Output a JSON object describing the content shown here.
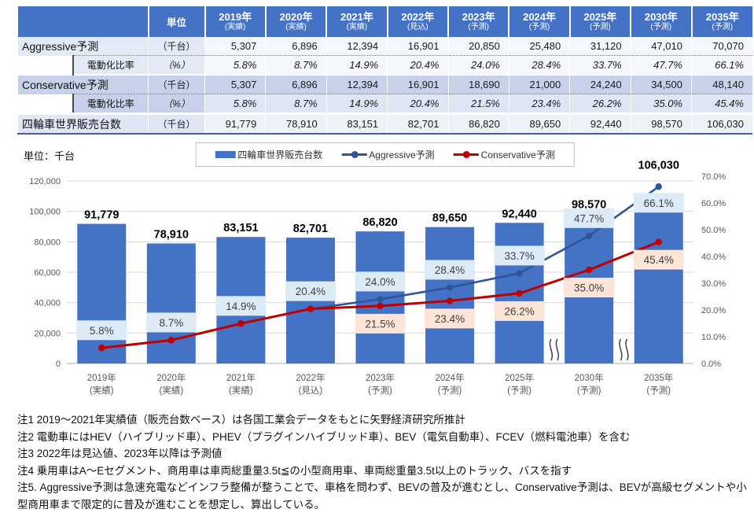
{
  "table": {
    "unit_header": "単位",
    "columns": [
      {
        "year": "2019年",
        "status": "(実績)"
      },
      {
        "year": "2020年",
        "status": "(実績)"
      },
      {
        "year": "2021年",
        "status": "(実績)"
      },
      {
        "year": "2022年",
        "status": "(見込)"
      },
      {
        "year": "2023年",
        "status": "(予測)"
      },
      {
        "year": "2024年",
        "status": "(予測)"
      },
      {
        "year": "2025年",
        "status": "(予測)"
      },
      {
        "year": "2030年",
        "status": "(予測)"
      },
      {
        "year": "2035年",
        "status": "(予測)"
      }
    ],
    "rows": [
      {
        "id": "aggressive",
        "label": "Aggressive予測",
        "unit": "（千台）",
        "values": [
          "5,307",
          "6,896",
          "12,394",
          "16,901",
          "20,850",
          "25,480",
          "31,120",
          "47,010",
          "70,070"
        ]
      },
      {
        "id": "aggressive-ratio",
        "label": "電動化比率",
        "unit": "（%）",
        "values": [
          "5.8%",
          "8.7%",
          "14.9%",
          "20.4%",
          "24.0%",
          "28.4%",
          "33.7%",
          "47.7%",
          "66.1%"
        ]
      },
      {
        "id": "conservative",
        "label": "Conservative予測",
        "unit": "（千台）",
        "values": [
          "5,307",
          "6,896",
          "12,394",
          "16,901",
          "18,690",
          "21,000",
          "24,240",
          "34,500",
          "48,140"
        ]
      },
      {
        "id": "conservative-ratio",
        "label": "電動化比率",
        "unit": "（%）",
        "values": [
          "5.8%",
          "8.7%",
          "14.9%",
          "20.4%",
          "21.5%",
          "23.4%",
          "26.2%",
          "35.0%",
          "45.4%"
        ]
      },
      {
        "id": "total",
        "label": "四輪車世界販売台数",
        "unit": "（千台）",
        "values": [
          "91,779",
          "78,910",
          "83,151",
          "82,701",
          "86,820",
          "89,650",
          "92,440",
          "98,570",
          "106,030"
        ]
      }
    ]
  },
  "chart_data": {
    "type": "bar+line",
    "unit_label": "単位：千台",
    "legend_position": "top",
    "grid": true,
    "categories": [
      {
        "year": "2019年",
        "status": "(実績)"
      },
      {
        "year": "2020年",
        "status": "(実績)"
      },
      {
        "year": "2021年",
        "status": "(実績)"
      },
      {
        "year": "2022年",
        "status": "(見込)"
      },
      {
        "year": "2023年",
        "status": "(予測)"
      },
      {
        "year": "2024年",
        "status": "(予測)"
      },
      {
        "year": "2025年",
        "status": "(予測)"
      },
      {
        "year": "2030年",
        "status": "(予測)"
      },
      {
        "year": "2035年",
        "status": "(予測)"
      }
    ],
    "series": [
      {
        "name": "四輪車世界販売台数",
        "type": "bar",
        "axis": "left",
        "color": "#4472C4",
        "values": [
          91779,
          78910,
          83151,
          82701,
          86820,
          89650,
          92440,
          98570,
          106030
        ],
        "labels": [
          "91,779",
          "78,910",
          "83,151",
          "82,701",
          "86,820",
          "89,650",
          "92,440",
          "98,570",
          "106,030"
        ]
      },
      {
        "name": "Aggressive予測",
        "type": "line",
        "axis": "right",
        "color": "#2F5597",
        "label_bg": "#DDEBF7",
        "values": [
          5.8,
          8.7,
          14.9,
          20.4,
          24.0,
          28.4,
          33.7,
          47.7,
          66.1
        ],
        "labels": [
          "5.8%",
          "8.7%",
          "14.9%",
          "20.4%",
          "24.0%",
          "28.4%",
          "33.7%",
          "47.7%",
          "66.1%"
        ]
      },
      {
        "name": "Conservative予測",
        "type": "line",
        "axis": "right",
        "color": "#C00000",
        "label_bg": "#FCE4D6",
        "values": [
          5.8,
          8.7,
          14.9,
          20.4,
          21.5,
          23.4,
          26.2,
          35.0,
          45.4
        ],
        "labels": [
          "5.8%",
          "8.7%",
          "14.9%",
          "20.4%",
          "21.5%",
          "23.4%",
          "26.2%",
          "35.0%",
          "45.4%"
        ]
      }
    ],
    "left_axis": {
      "min": 0,
      "max": 120000,
      "step": 20000,
      "ticks": [
        "0",
        "20,000",
        "40,000",
        "60,000",
        "80,000",
        "100,000",
        "120,000"
      ]
    },
    "right_axis": {
      "min": 0,
      "max": 70,
      "step": 10,
      "ticks": [
        "0.0%",
        "10.0%",
        "20.0%",
        "30.0%",
        "40.0%",
        "50.0%",
        "60.0%",
        "70.0%"
      ]
    },
    "axis_break_after_categories": [
      "2025年",
      "2030年"
    ]
  },
  "notes": [
    "注1 2019～2021年実績値（販売台数ベース）は各国工業会データをもとに矢野経済研究所推計",
    "注2 電動車にはHEV（ハイブリッド車）、PHEV（プラグインハイブリッド車）、BEV（電気自動車）、FCEV（燃料電池車）を含む",
    "注3 2022年は見込値、2023年以降は予測値",
    "注4 乗用車はA～Eセグメント、商用車は車両総重量3.5t≦の小型商用車、車両総重量3.5t以上のトラック、バスを指す",
    "注5. Aggressive予測は急速充電などインフラ整備が整うことで、車格を問わず、BEVの普及が進むとし、Conservative予測は、BEVが高級セグメントや小型商用車まで限定的に普及が進むことを想定し、算出している。"
  ],
  "colors": {
    "table_header_bg": "#4472C4",
    "bar": "#4472C4",
    "aggressive_line": "#2F5597",
    "conservative_line": "#C00000",
    "aggressive_label_bg": "#DDEBF7",
    "conservative_label_bg": "#FCE4D6"
  }
}
